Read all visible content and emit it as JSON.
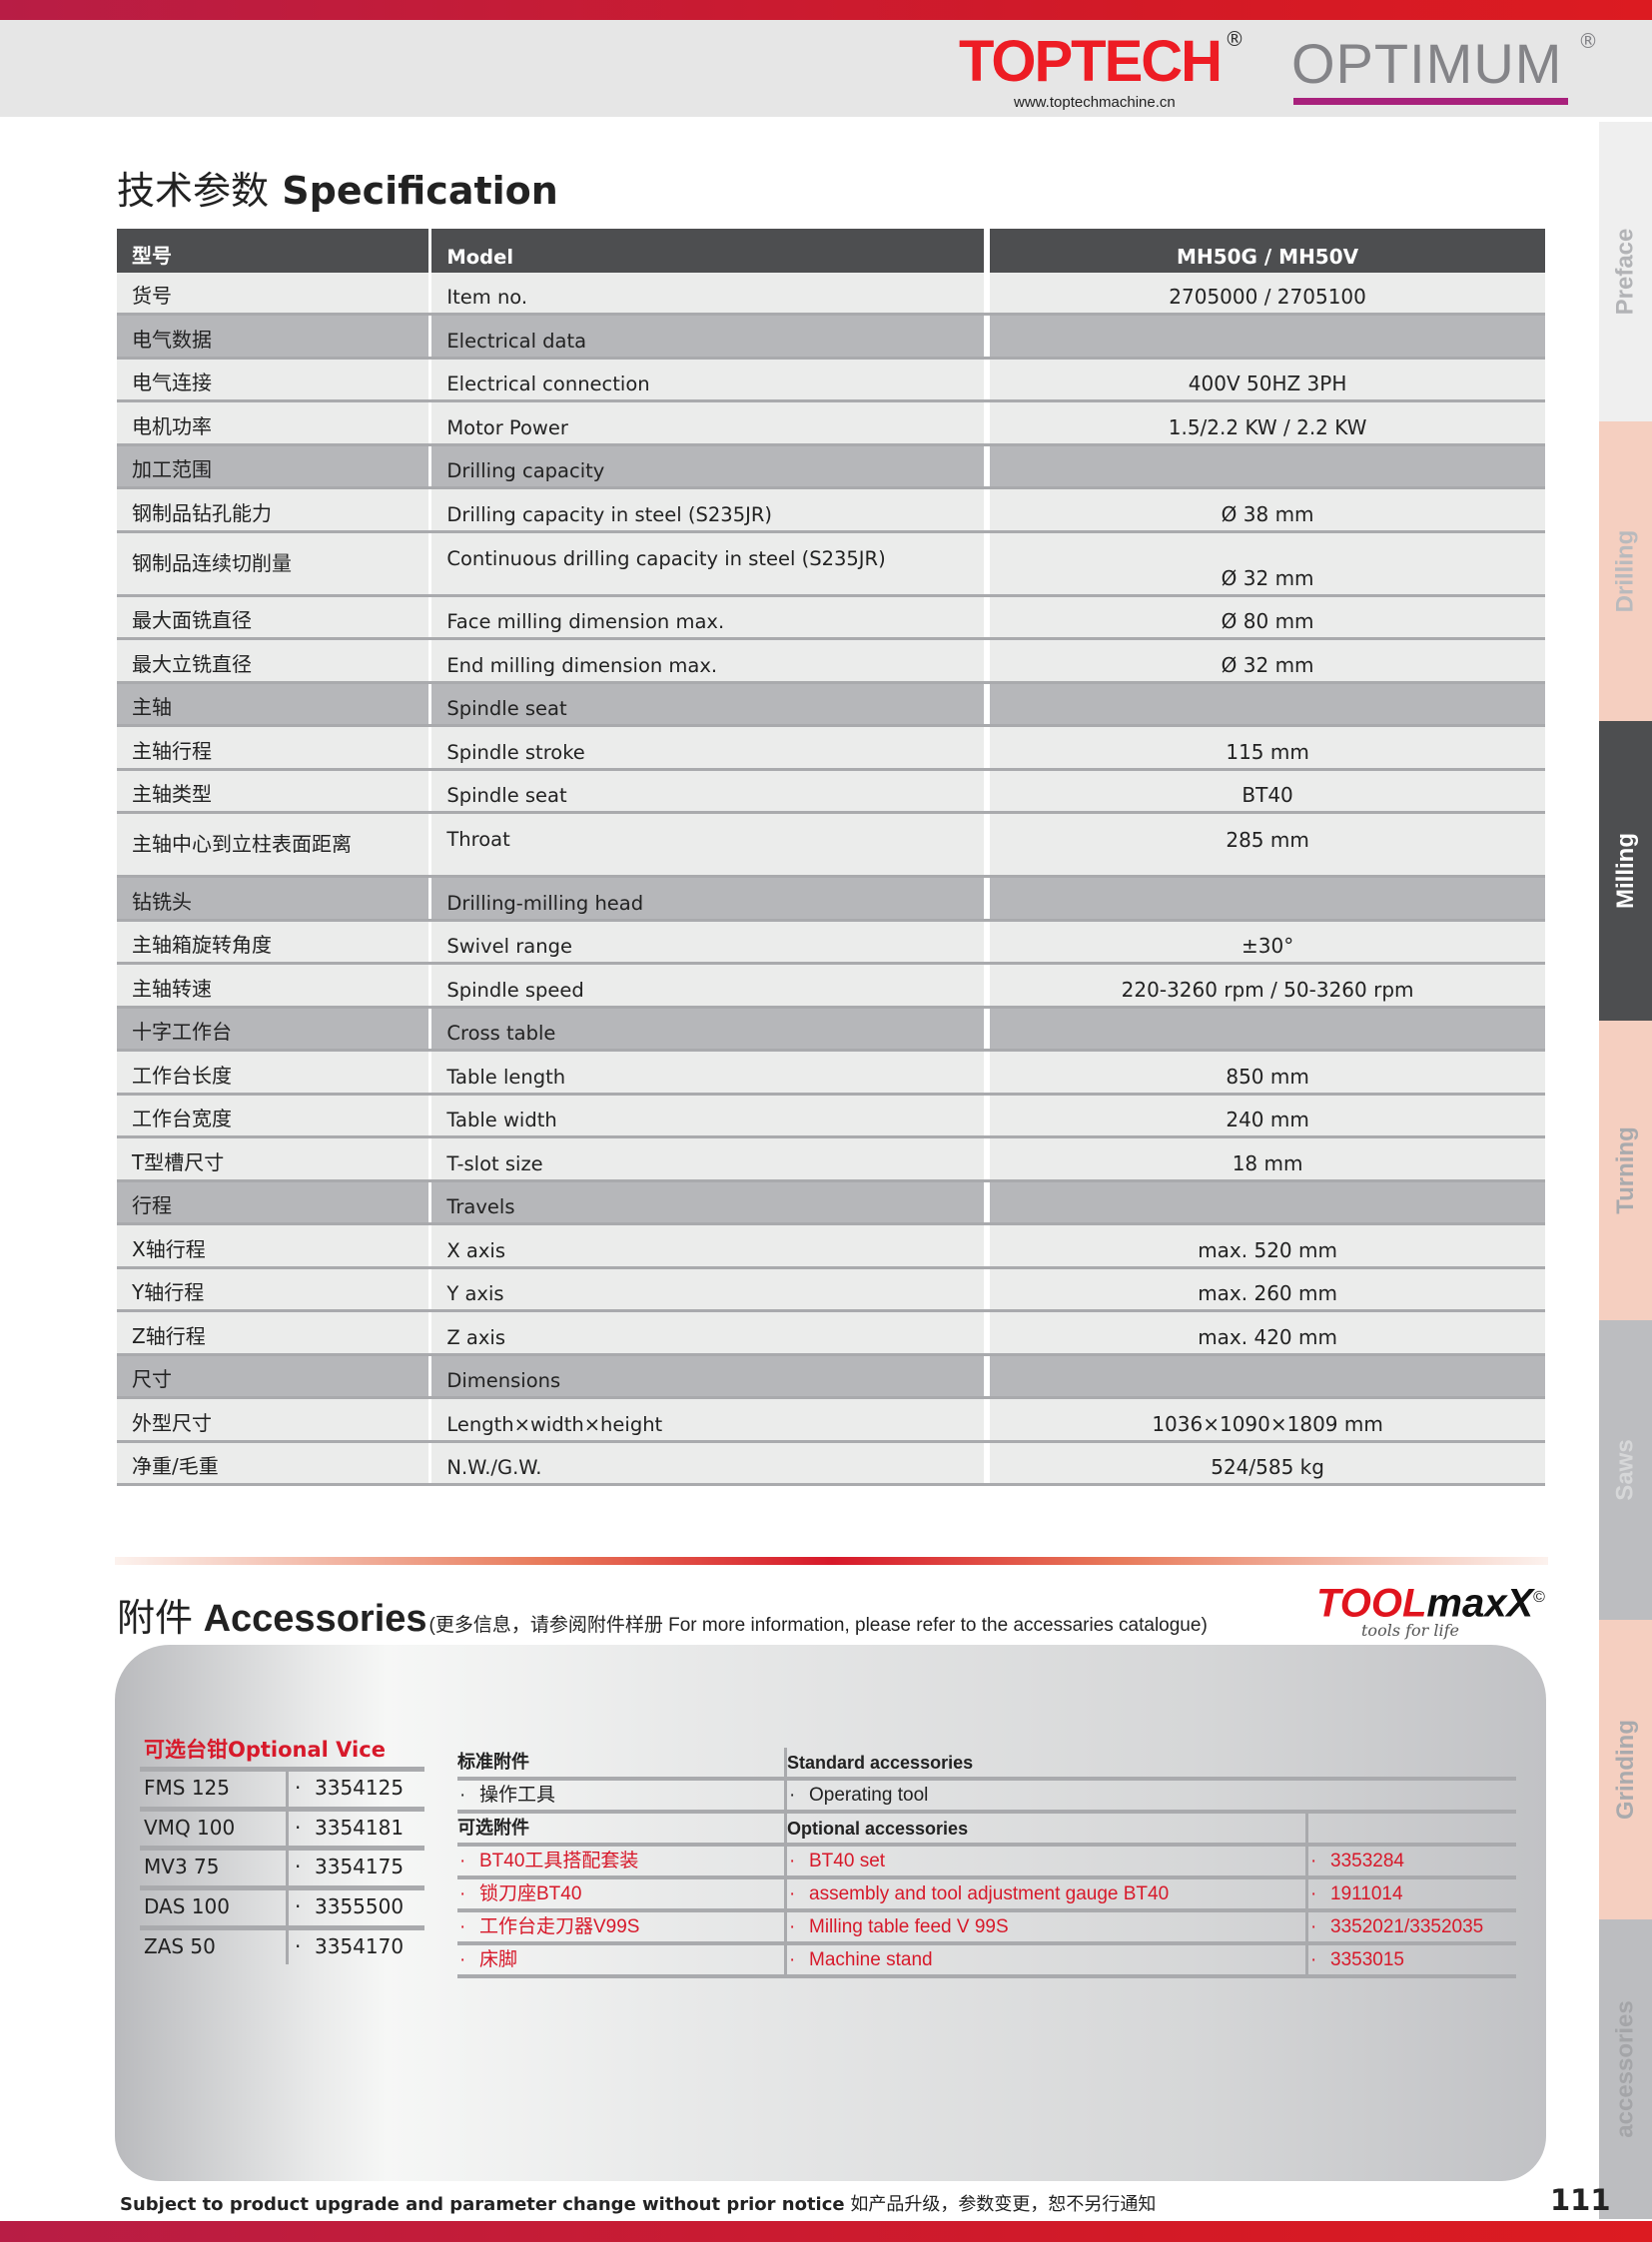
{
  "header": {
    "toptech_logo": "TOPTECH",
    "toptech_url": "www.toptechmachine.cn",
    "optimum_logo": "OPTIMUM",
    "registered": "®"
  },
  "side_tabs": [
    {
      "label": "Preface",
      "bg": "#efefef",
      "color": "#b2b3b6"
    },
    {
      "label": "Drilling",
      "bg": "#f5cfc0",
      "color": "#b9babd"
    },
    {
      "label": "Milling",
      "bg": "#4d4e50",
      "color": "#ffffff",
      "active": true
    },
    {
      "label": "Turning",
      "bg": "#f5cfc0",
      "color": "#a9aaad"
    },
    {
      "label": "Saws",
      "bg": "#bcbdc0",
      "color": "#d6d7d8"
    },
    {
      "label": "Grinding",
      "bg": "#f5cfc0",
      "color": "#a9aaad"
    },
    {
      "label": "accessories",
      "bg": "#bcbdc0",
      "color": "#a4a5a8"
    }
  ],
  "spec": {
    "title_cn": "技术参数",
    "title_en": "Specification",
    "header": {
      "cn": "型号",
      "en": "Model",
      "value": "MH50G / MH50V"
    },
    "rows": [
      {
        "cn": "货号",
        "en": "Item no.",
        "value": "2705000 / 2705100"
      },
      {
        "cn": "电气数据",
        "en": "Electrical data",
        "value": "",
        "type": "section"
      },
      {
        "cn": "电气连接",
        "en": "Electrical connection",
        "value": "400V 50HZ 3PH"
      },
      {
        "cn": "电机功率",
        "en": "Motor Power",
        "value": "1.5/2.2 KW / 2.2 KW"
      },
      {
        "cn": "加工范围",
        "en": "Drilling capacity",
        "value": "",
        "type": "section"
      },
      {
        "cn": "钢制品钻孔能力",
        "en": "Drilling capacity in steel (S235JR)",
        "value": "Ø 38 mm"
      },
      {
        "cn": "钢制品连续切削量",
        "en": "Continuous drilling capacity in steel (S235JR)",
        "value": "Ø 32 mm",
        "type": "tall"
      },
      {
        "cn": "最大面铣直径",
        "en": "Face milling dimension max.",
        "value": "Ø 80 mm"
      },
      {
        "cn": "最大立铣直径",
        "en": "End milling dimension max.",
        "value": "Ø 32 mm"
      },
      {
        "cn": "主轴",
        "en": "Spindle seat",
        "value": "",
        "type": "section"
      },
      {
        "cn": "主轴行程",
        "en": "Spindle stroke",
        "value": "115 mm"
      },
      {
        "cn": "主轴类型",
        "en": "Spindle seat",
        "value": "BT40"
      },
      {
        "cn": "主轴中心到立柱表面距离",
        "en": "Throat",
        "value": "285 mm",
        "type": "tall tall2"
      },
      {
        "cn": "钻铣头",
        "en": "Drilling-milling head",
        "value": "",
        "type": "section"
      },
      {
        "cn": "主轴箱旋转角度",
        "en": "Swivel range",
        "value": "±30°"
      },
      {
        "cn": "主轴转速",
        "en": "Spindle speed",
        "value": "220-3260 rpm / 50-3260 rpm"
      },
      {
        "cn": "十字工作台",
        "en": "Cross table",
        "value": "",
        "type": "section"
      },
      {
        "cn": "工作台长度",
        "en": "Table length",
        "value": "850 mm"
      },
      {
        "cn": "工作台宽度",
        "en": "Table width",
        "value": "240 mm"
      },
      {
        "cn": "T型槽尺寸",
        "en": "T-slot size",
        "value": "18 mm"
      },
      {
        "cn": "行程",
        "en": "Travels",
        "value": "",
        "type": "section"
      },
      {
        "cn": "X轴行程",
        "en": "X axis",
        "value": "max. 520 mm"
      },
      {
        "cn": "Y轴行程",
        "en": "Y axis",
        "value": "max. 260 mm"
      },
      {
        "cn": "Z轴行程",
        "en": "Z axis",
        "value": "max. 420 mm"
      },
      {
        "cn": "尺寸",
        "en": "Dimensions",
        "value": "",
        "type": "section"
      },
      {
        "cn": "外型尺寸",
        "en": "Length×width×height",
        "value": "1036×1090×1809 mm"
      },
      {
        "cn": "净重/毛重",
        "en": "N.W./G.W.",
        "value": "524/585 kg"
      }
    ]
  },
  "accessories": {
    "title_cn": "附件",
    "title_en": "Accessories",
    "note": "(更多信息，请参阅附件样册 For more information, please refer to the accessaries catalogue)",
    "toolmaxx_red": "TOOL",
    "toolmaxx_black": "maxX",
    "toolmaxx_mark": "©",
    "toolmaxx_tagline": "tools for life",
    "vice_title": "可选台钳Optional Vice",
    "vices": [
      {
        "name": "FMS 125",
        "item": "3354125"
      },
      {
        "name": "VMQ 100",
        "item": "3354181"
      },
      {
        "name": "MV3 75",
        "item": "3354175"
      },
      {
        "name": "DAS 100",
        "item": "3355500"
      },
      {
        "name": "ZAS 50",
        "item": "3354170"
      }
    ],
    "standard_cn": "标准附件",
    "standard_en": "Standard accessories",
    "standard_items": [
      {
        "cn": "操作工具",
        "en": "Operating tool"
      }
    ],
    "optional_cn": "可选附件",
    "optional_en": "Optional  accessories",
    "optional_items": [
      {
        "cn": "BT40工具搭配套装",
        "en": "BT40 set",
        "item": "3353284"
      },
      {
        "cn": "锁刀座BT40",
        "en": "assembly and tool adjustment gauge BT40",
        "item": "1911014"
      },
      {
        "cn": "工作台走刀器V99S",
        "en": "Milling table feed V 99S",
        "item": "3352021/3352035"
      },
      {
        "cn": "床脚",
        "en": "Machine stand",
        "item": "3353015"
      }
    ],
    "bullet": "·"
  },
  "footer": {
    "notice_en": "Subject to product upgrade and parameter change without prior notice",
    "notice_cn": "如产品升级，参数变更，恕不另行通知",
    "page_number": "111"
  },
  "colors": {
    "accent_red": "#d7192a",
    "header_dark": "#4d4e50",
    "section_gray": "#b6b7ba",
    "row_light": "#ebeceb",
    "optimum_magenta": "#a8217c"
  }
}
